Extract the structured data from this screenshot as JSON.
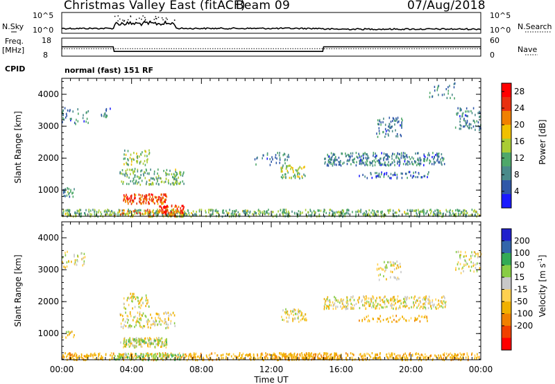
{
  "header": {
    "title": "Christmas Valley East (fitACF)",
    "beam": "Beam 09",
    "date": "07/Aug/2018"
  },
  "status_panel": {
    "nsky_label": "N.Sky",
    "nsky_ticks": [
      "10^5",
      "10^0"
    ],
    "nsearch_label": "N.Search",
    "nsearch_ticks": [
      "10^5",
      "10^0"
    ],
    "freq_label": [
      "Freq.",
      "[MHz]"
    ],
    "freq_ticks": [
      "18",
      "8"
    ],
    "nave_label": "Nave",
    "nave_ticks": [
      "60",
      "0"
    ],
    "cpid_label": "CPID",
    "cpid_value": "normal (fast) 151 RF",
    "freq_mhz": [
      {
        "t": 0,
        "v": 13.2
      },
      {
        "t": 2.95,
        "v": 13.2
      },
      {
        "t": 3.0,
        "v": 10.6
      },
      {
        "t": 14.95,
        "v": 10.6
      },
      {
        "t": 15.0,
        "v": 13.2
      },
      {
        "t": 24,
        "v": 13.2
      }
    ],
    "nave_value": [
      {
        "t": 0,
        "v": 25
      },
      {
        "t": 24,
        "v": 25
      }
    ]
  },
  "chart_data": [
    {
      "type": "heatmap",
      "panel": "power",
      "ylabel": "Slant Range [km]",
      "y_ticks": [
        "1000",
        "2000",
        "3000",
        "4000"
      ],
      "ylim": [
        180,
        4500
      ],
      "xlim": [
        0,
        24
      ],
      "colorbar_label": "Power [dB]",
      "colorbar_ticks": [
        "4",
        "8",
        "12",
        "16",
        "20",
        "24",
        "28"
      ],
      "colorbar_range": [
        0,
        30
      ],
      "colors": [
        "#1a1aff",
        "#2f58a8",
        "#4a8a8a",
        "#4fa86a",
        "#aacc33",
        "#f0c000",
        "#f08000",
        "#e83010",
        "#ff0000"
      ],
      "regions": [
        {
          "t0": 0.0,
          "t1": 24.0,
          "r0": 200,
          "r1": 420,
          "v": 12,
          "d": 0.55
        },
        {
          "t0": 3.0,
          "t1": 7.0,
          "r0": 200,
          "r1": 420,
          "v": 20,
          "d": 0.45
        },
        {
          "t0": 3.5,
          "t1": 6.0,
          "r0": 600,
          "r1": 900,
          "v": 24,
          "d": 0.75
        },
        {
          "t0": 5.5,
          "t1": 7.0,
          "r0": 300,
          "r1": 550,
          "v": 26,
          "d": 0.7
        },
        {
          "t0": 3.3,
          "t1": 6.5,
          "r0": 1200,
          "r1": 1700,
          "v": 12,
          "d": 0.35
        },
        {
          "t0": 3.5,
          "t1": 5.0,
          "r0": 1800,
          "r1": 2300,
          "v": 14,
          "d": 0.3
        },
        {
          "t0": 6.3,
          "t1": 7.0,
          "r0": 1200,
          "r1": 1600,
          "v": 12,
          "d": 0.5
        },
        {
          "t0": 0.0,
          "t1": 0.7,
          "r0": 800,
          "r1": 1100,
          "v": 10,
          "d": 0.5
        },
        {
          "t0": 0.0,
          "t1": 1.5,
          "r0": 3100,
          "r1": 3600,
          "v": 8,
          "d": 0.2
        },
        {
          "t0": 2.0,
          "t1": 2.8,
          "r0": 3300,
          "r1": 3600,
          "v": 8,
          "d": 0.25
        },
        {
          "t0": 12.5,
          "t1": 14.0,
          "r0": 1400,
          "r1": 1800,
          "v": 14,
          "d": 0.45
        },
        {
          "t0": 11.0,
          "t1": 13.0,
          "r0": 1800,
          "r1": 2200,
          "v": 8,
          "d": 0.2
        },
        {
          "t0": 15.0,
          "t1": 22.0,
          "r0": 1800,
          "r1": 2200,
          "v": 8,
          "d": 0.5
        },
        {
          "t0": 17.0,
          "t1": 21.0,
          "r0": 1400,
          "r1": 1600,
          "v": 6,
          "d": 0.35
        },
        {
          "t0": 18.0,
          "t1": 19.5,
          "r0": 2700,
          "r1": 3300,
          "v": 8,
          "d": 0.3
        },
        {
          "t0": 22.5,
          "t1": 24.0,
          "r0": 2900,
          "r1": 3600,
          "v": 8,
          "d": 0.3
        },
        {
          "t0": 21.0,
          "t1": 22.5,
          "r0": 3900,
          "r1": 4400,
          "v": 8,
          "d": 0.15
        }
      ]
    },
    {
      "type": "heatmap",
      "panel": "velocity",
      "ylabel": "Slant Range [km]",
      "y_ticks": [
        "1000",
        "2000",
        "3000",
        "4000"
      ],
      "ylim": [
        180,
        4500
      ],
      "xlim": [
        0,
        24
      ],
      "x_ticks": [
        "00:00",
        "04:00",
        "08:00",
        "12:00",
        "16:00",
        "20:00",
        "00:00"
      ],
      "xlabel": "Time UT",
      "colorbar_label": "Velocity [m s^-1]",
      "colorbar_ticks": [
        "200",
        "100",
        "50",
        "15",
        "-15",
        "-50",
        "-100",
        "-200"
      ],
      "colors": [
        "#ff0000",
        "#f04000",
        "#f08000",
        "#f0b000",
        "#ffd050",
        "#c8c8c8",
        "#88cc44",
        "#33aa55",
        "#3366aa",
        "#2020cc"
      ],
      "regions": [
        {
          "t0": 0.0,
          "t1": 24.0,
          "r0": 200,
          "r1": 420,
          "v": -30,
          "d": 0.55
        },
        {
          "t0": 3.0,
          "t1": 7.0,
          "r0": 200,
          "r1": 420,
          "v": 30,
          "d": 0.5
        },
        {
          "t0": 3.5,
          "t1": 6.0,
          "r0": 600,
          "r1": 900,
          "v": 0,
          "d": 0.75
        },
        {
          "t0": 3.3,
          "t1": 6.0,
          "r0": 700,
          "r1": 850,
          "v": 30,
          "d": 0.55
        },
        {
          "t0": 12.0,
          "t1": 16.0,
          "r0": 220,
          "r1": 420,
          "v": -40,
          "d": 0.6
        },
        {
          "t0": 3.3,
          "t1": 6.5,
          "r0": 1200,
          "r1": 1700,
          "v": 0,
          "d": 0.35
        },
        {
          "t0": 3.5,
          "t1": 5.0,
          "r0": 1800,
          "r1": 2300,
          "v": 0,
          "d": 0.3
        },
        {
          "t0": 0.0,
          "t1": 0.7,
          "r0": 900,
          "r1": 1100,
          "v": 0,
          "d": 0.5
        },
        {
          "t0": 0.0,
          "t1": 1.5,
          "r0": 3100,
          "r1": 3600,
          "v": 0,
          "d": 0.2
        },
        {
          "t0": 12.5,
          "t1": 14.0,
          "r0": 1400,
          "r1": 1800,
          "v": 0,
          "d": 0.45
        },
        {
          "t0": 15.0,
          "t1": 22.0,
          "r0": 1800,
          "r1": 2200,
          "v": 0,
          "d": 0.5
        },
        {
          "t0": 17.0,
          "t1": 21.0,
          "r0": 1400,
          "r1": 1600,
          "v": -30,
          "d": 0.3
        },
        {
          "t0": 18.0,
          "t1": 19.5,
          "r0": 2700,
          "r1": 3300,
          "v": 0,
          "d": 0.25
        },
        {
          "t0": 22.5,
          "t1": 24.0,
          "r0": 2900,
          "r1": 3600,
          "v": 0,
          "d": 0.25
        }
      ]
    }
  ]
}
